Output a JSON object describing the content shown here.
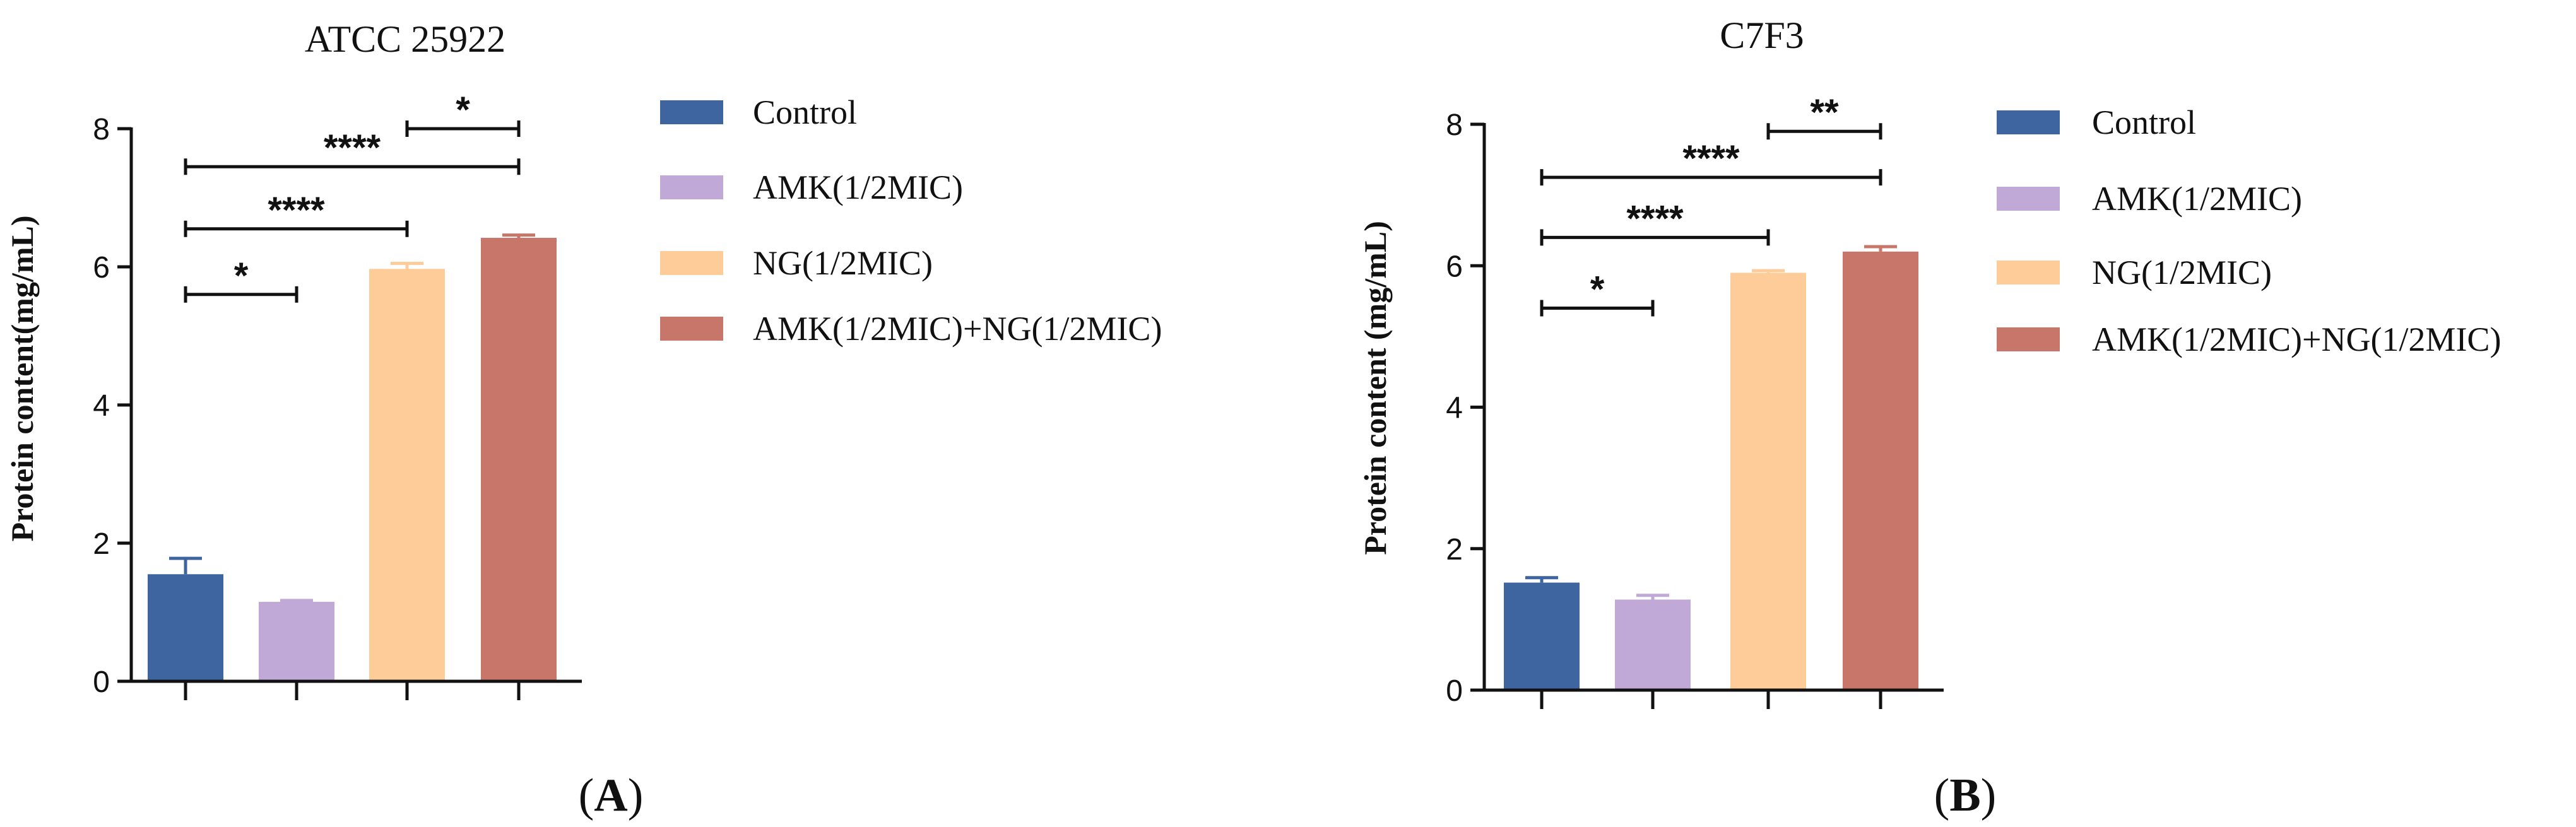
{
  "chart_data": [
    {
      "type": "bar",
      "title": "ATCC 25922",
      "panel_label": "A",
      "xlabel": "",
      "ylabel": "Protein content(mg/mL)",
      "ylim": [
        0,
        8
      ],
      "yticks": [
        "0",
        "2",
        "4",
        "6",
        "8"
      ],
      "categories": [
        "Control",
        "AMK(1/2MIC)",
        "NG(1/2MIC)",
        "AMK(1/2MIC)+NG(1/2MIC)"
      ],
      "values": [
        1.55,
        1.15,
        5.97,
        6.42
      ],
      "errors": [
        0.23,
        0.02,
        0.08,
        0.04
      ],
      "colors": [
        "#3f65a0",
        "#c0a9d6",
        "#fdcc98",
        "#c9766a"
      ],
      "significance": [
        {
          "from": 0,
          "to": 1,
          "label": "*",
          "y": 5.6
        },
        {
          "from": 0,
          "to": 2,
          "label": "****",
          "y": 6.55
        },
        {
          "from": 0,
          "to": 3,
          "label": "****",
          "y": 7.45
        },
        {
          "from": 2,
          "to": 3,
          "label": "*",
          "y": 8.0
        }
      ],
      "legend": [
        "Control",
        "AMK(1/2MIC)",
        "NG(1/2MIC)",
        "AMK(1/2MIC)+NG(1/2MIC)"
      ]
    },
    {
      "type": "bar",
      "title": "C7F3",
      "panel_label": "B",
      "xlabel": "",
      "ylabel": "Protein content (mg/mL)",
      "ylim": [
        0,
        8
      ],
      "yticks": [
        "0",
        "2",
        "4",
        "6",
        "8"
      ],
      "categories": [
        "Control",
        "AMK(1/2MIC)",
        "NG(1/2MIC)",
        "AMK(1/2MIC)+NG(1/2MIC)"
      ],
      "values": [
        1.52,
        1.28,
        5.9,
        6.2
      ],
      "errors": [
        0.07,
        0.06,
        0.03,
        0.07
      ],
      "colors": [
        "#3f65a0",
        "#c0a9d6",
        "#fdcc98",
        "#c9766a"
      ],
      "significance": [
        {
          "from": 0,
          "to": 1,
          "label": "*",
          "y": 5.4
        },
        {
          "from": 0,
          "to": 2,
          "label": "****",
          "y": 6.4
        },
        {
          "from": 0,
          "to": 3,
          "label": "****",
          "y": 7.25
        },
        {
          "from": 2,
          "to": 3,
          "label": "**",
          "y": 7.9
        }
      ],
      "legend": [
        "Control",
        "AMK(1/2MIC)",
        "NG(1/2MIC)",
        "AMK(1/2MIC)+NG(1/2MIC)"
      ]
    }
  ]
}
